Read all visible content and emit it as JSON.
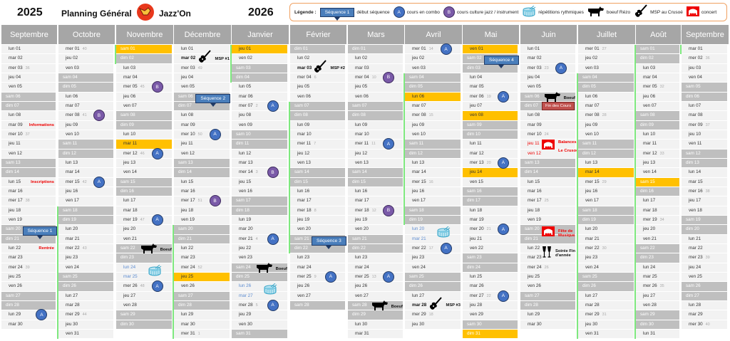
{
  "header": {
    "year_left": "2025",
    "title": "Planning Général",
    "brand": "Jazz'On",
    "year_right": "2026"
  },
  "legend": {
    "title": "Légende :",
    "items": [
      {
        "icon": "sequence-callout",
        "sample": "Séquence 1",
        "label": "début séquence"
      },
      {
        "icon": "circle-A",
        "sample": "A",
        "label": "cours en combo"
      },
      {
        "icon": "circle-B",
        "sample": "B",
        "label": "cours culture jazz / instrument"
      },
      {
        "icon": "drum-icon",
        "label": "répétitions rythmiques"
      },
      {
        "icon": "cow-icon",
        "label": "boeuf Rézo"
      },
      {
        "icon": "guitar-icon",
        "label": "MSP au Crusoé"
      },
      {
        "icon": "concert-icon",
        "label": "concert"
      }
    ]
  },
  "colors": {
    "weekday": "#f2f2f2",
    "weekend": "#bfbfbf",
    "holiday": "#ffc000",
    "header": "#a6a6a6",
    "vacation": "#7ee87e",
    "combo": "#4472c4",
    "culture": "#7a5aa8",
    "alert": "#ee0000"
  },
  "weekday_names": [
    "dim",
    "lun",
    "mar",
    "mer",
    "jeu",
    "ven",
    "sam"
  ],
  "months": [
    {
      "name": "Septembre",
      "year": 2025,
      "month": 9,
      "vacation": [],
      "holidays": [],
      "blue": [],
      "red": [],
      "bold": [],
      "events": [
        {
          "day": 9,
          "type": "text",
          "label": "Informations"
        },
        {
          "day": 15,
          "type": "text",
          "label": "Inscriptions"
        },
        {
          "day": 20,
          "type": "seq",
          "label": "Séquence 1"
        },
        {
          "day": 22,
          "type": "text",
          "label": "Rentrée"
        },
        {
          "day": 29,
          "type": "A",
          "label": "A"
        }
      ]
    },
    {
      "name": "Octobre",
      "year": 2025,
      "month": 10,
      "vacation": [
        18,
        31
      ],
      "holidays": [],
      "blue": [],
      "red": [],
      "bold": [],
      "events": [
        {
          "day": 8,
          "type": "B",
          "label": "B"
        },
        {
          "day": 15,
          "type": "A",
          "label": "A"
        }
      ]
    },
    {
      "name": "Novembre",
      "year": 2025,
      "month": 11,
      "vacation": [
        1,
        2
      ],
      "holidays": [
        1,
        11
      ],
      "blue": [
        24,
        25
      ],
      "red": [],
      "bold": [],
      "events": [
        {
          "day": 5,
          "type": "B",
          "label": "B"
        },
        {
          "day": 12,
          "type": "A",
          "label": "A"
        },
        {
          "day": 19,
          "type": "A",
          "label": "A"
        },
        {
          "day": 22,
          "type": "cow",
          "label": "Boeuf"
        },
        {
          "day": 24,
          "type": "drum",
          "label": ""
        },
        {
          "day": 26,
          "type": "A",
          "label": "A"
        }
      ]
    },
    {
      "name": "Décembre",
      "year": 2025,
      "month": 12,
      "vacation": [
        20,
        31
      ],
      "holidays": [
        25
      ],
      "blue": [],
      "red": [],
      "bold": [
        2
      ],
      "events": [
        {
          "day": 2,
          "type": "guitar",
          "label": "MSP #1"
        },
        {
          "day": 6,
          "type": "seq",
          "label": "Séquence 2"
        },
        {
          "day": 10,
          "type": "A",
          "label": "A"
        },
        {
          "day": 17,
          "type": "B",
          "label": "B"
        }
      ]
    },
    {
      "name": "Janvier",
      "year": 2026,
      "month": 1,
      "vacation": [
        1,
        4
      ],
      "holidays": [
        1
      ],
      "blue": [
        26,
        27
      ],
      "red": [],
      "bold": [],
      "events": [
        {
          "day": 7,
          "type": "A",
          "label": "A"
        },
        {
          "day": 14,
          "type": "B",
          "label": "B"
        },
        {
          "day": 21,
          "type": "A",
          "label": "A"
        },
        {
          "day": 24,
          "type": "cow",
          "label": "Boeuf"
        },
        {
          "day": 26,
          "type": "drum",
          "label": ""
        },
        {
          "day": 28,
          "type": "A",
          "label": "A"
        }
      ]
    },
    {
      "name": "Février",
      "year": 2026,
      "month": 2,
      "vacation": [
        7,
        22
      ],
      "holidays": [],
      "blue": [],
      "red": [],
      "bold": [
        3
      ],
      "events": [
        {
          "day": 3,
          "type": "guitar",
          "label": "MSP  #2"
        },
        {
          "day": 21,
          "type": "seq",
          "label": "Séquence 3"
        },
        {
          "day": 25,
          "type": "A",
          "label": "A"
        }
      ]
    },
    {
      "name": "Mars",
      "year": 2026,
      "month": 3,
      "vacation": [],
      "holidays": [],
      "blue": [],
      "red": [],
      "bold": [],
      "events": [
        {
          "day": 4,
          "type": "B",
          "label": "B"
        },
        {
          "day": 11,
          "type": "A",
          "label": "A"
        },
        {
          "day": 18,
          "type": "B",
          "label": "B"
        },
        {
          "day": 25,
          "type": "A",
          "label": "A"
        },
        {
          "day": 28,
          "type": "cow",
          "label": "Boeuf"
        }
      ]
    },
    {
      "name": "Avril",
      "year": 2026,
      "month": 4,
      "vacation": [
        4,
        19
      ],
      "holidays": [
        6
      ],
      "blue": [
        20,
        21
      ],
      "red": [],
      "bold": [
        28
      ],
      "events": [
        {
          "day": 1,
          "type": "A",
          "label": "A"
        },
        {
          "day": 20,
          "type": "drum",
          "label": ""
        },
        {
          "day": 22,
          "type": "A",
          "label": "A"
        },
        {
          "day": 28,
          "type": "guitar",
          "label": "MSP #3"
        }
      ]
    },
    {
      "name": "Mai",
      "year": 2026,
      "month": 5,
      "vacation": [],
      "holidays": [
        1,
        8,
        14,
        31
      ],
      "blue": [],
      "red": [],
      "bold": [],
      "events": [
        {
          "day": 2,
          "type": "seq",
          "label": "Séquence 4"
        },
        {
          "day": 6,
          "type": "A",
          "label": "A"
        },
        {
          "day": 13,
          "type": "A",
          "label": "A"
        },
        {
          "day": 20,
          "type": "A",
          "label": "A"
        },
        {
          "day": 27,
          "type": "A",
          "label": "A"
        }
      ]
    },
    {
      "name": "Juin",
      "year": 2026,
      "month": 6,
      "vacation": [],
      "holidays": [],
      "blue": [],
      "red": [
        11,
        12
      ],
      "bold": [],
      "events": [
        {
          "day": 3,
          "type": "A",
          "label": "A"
        },
        {
          "day": 6,
          "type": "cow",
          "label": "Boeuf"
        },
        {
          "day": 7,
          "type": "fin",
          "label": "Fin des Cours"
        },
        {
          "day": 11,
          "type": "concert",
          "label": "Balances",
          "label2": "Le Crusoé"
        },
        {
          "day": 20,
          "type": "concert2",
          "label": "Fête de",
          "label2": "Musique"
        },
        {
          "day": 22,
          "type": "glasses",
          "label": "Soirée Fin",
          "label2": "d'année"
        }
      ]
    },
    {
      "name": "Juillet",
      "year": 2026,
      "month": 7,
      "vacation": [
        4,
        31
      ],
      "holidays": [
        14
      ],
      "blue": [],
      "red": [],
      "bold": [],
      "events": []
    },
    {
      "name": "Août",
      "year": 2026,
      "month": 8,
      "vacation": [
        1,
        31
      ],
      "holidays": [
        15
      ],
      "blue": [],
      "red": [],
      "bold": [],
      "events": []
    },
    {
      "name": "Septembre",
      "year": 2026,
      "month": 9,
      "vacation": [
        1,
        1
      ],
      "holidays": [],
      "blue": [],
      "red": [],
      "bold": [],
      "events": []
    }
  ]
}
